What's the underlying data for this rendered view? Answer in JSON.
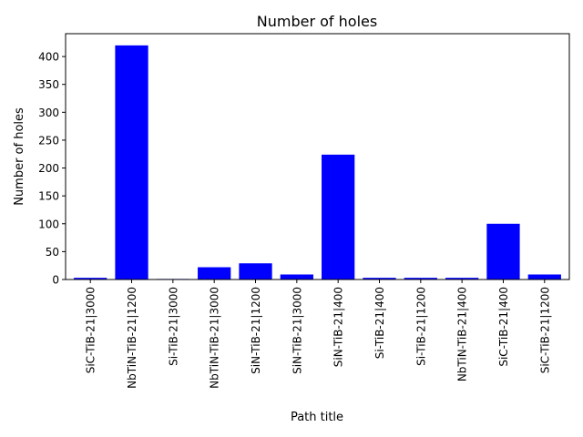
{
  "chart_data": {
    "type": "bar",
    "title": "Number of holes",
    "xlabel": "Path title",
    "ylabel": "Number of holes",
    "categories": [
      "SiC-TiB-21|3000",
      "NbTiN-TiB-21|1200",
      "Si-TiB-21|3000",
      "NbTiN-TiB-21|3000",
      "SiN-TiB-21|1200",
      "SiN-TiB-21|3000",
      "SiN-TiB-21|400",
      "Si-TiB-21|400",
      "Si-TiB-21|1200",
      "NbTiN-TiB-21|400",
      "SiC-TiB-21|400",
      "SiC-TiB-21|1200"
    ],
    "values": [
      3,
      420,
      1,
      22,
      29,
      9,
      224,
      3,
      3,
      3,
      100,
      9
    ],
    "ylim": [
      0,
      441
    ],
    "yticks": [
      0,
      50,
      100,
      150,
      200,
      250,
      300,
      350,
      400
    ],
    "bar_color": "#0000ff",
    "grid": false,
    "legend": "none"
  }
}
